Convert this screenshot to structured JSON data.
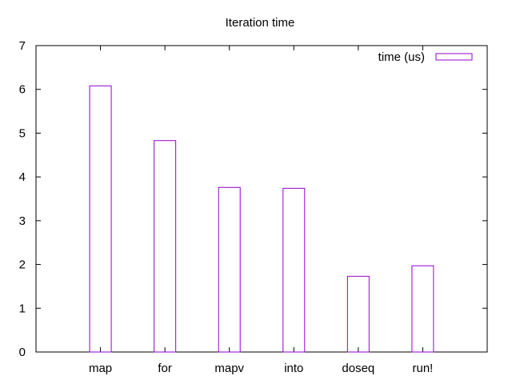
{
  "chart_data": {
    "type": "bar",
    "title": "Iteration time",
    "xlabel": "",
    "ylabel": "",
    "categories": [
      "map",
      "for",
      "mapv",
      "into",
      "doseq",
      "run!"
    ],
    "series": [
      {
        "name": "time (us)",
        "values": [
          6.08,
          4.83,
          3.76,
          3.74,
          1.73,
          1.97
        ],
        "color": "#9400d3"
      }
    ],
    "ylim": [
      0,
      7
    ],
    "yticks": [
      0,
      1,
      2,
      3,
      4,
      5,
      6,
      7
    ],
    "grid": false,
    "legend_position": "top-right",
    "bar_fill": "none"
  }
}
